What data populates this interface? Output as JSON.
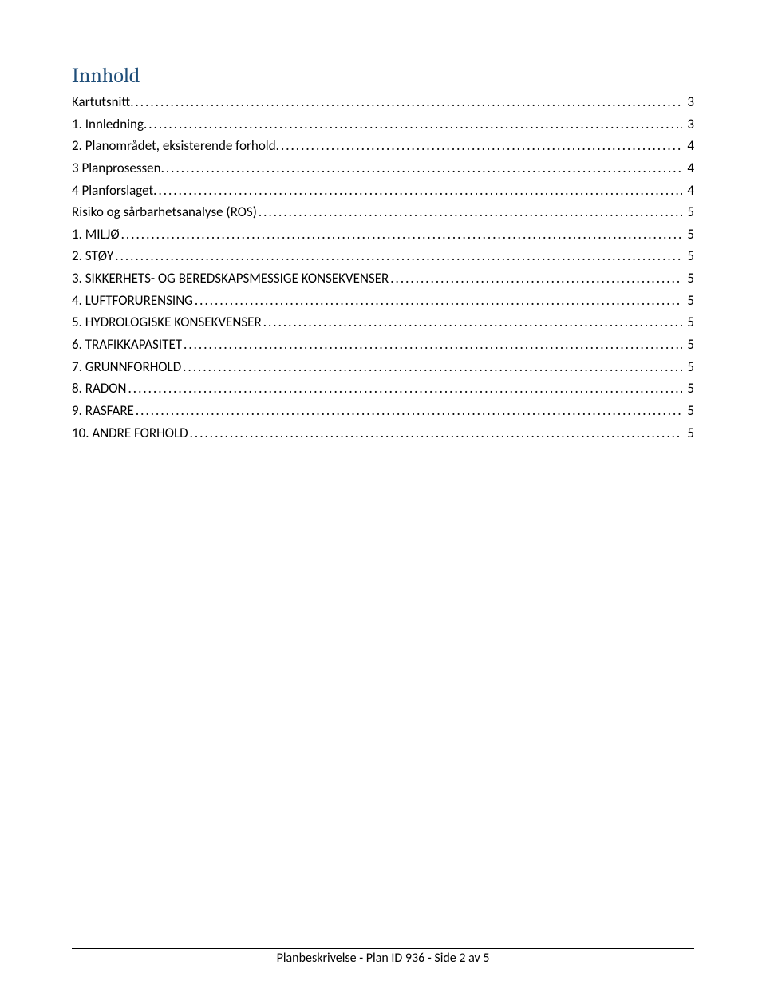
{
  "heading": "Innhold",
  "toc": [
    {
      "label": "Kartutsnitt.",
      "page": "3"
    },
    {
      "label": "1.   Innledning.",
      "page": "3"
    },
    {
      "label": "2.   Planområdet, eksisterende forhold.",
      "page": "4"
    },
    {
      "label": "3   Planprosessen.",
      "page": "4"
    },
    {
      "label": "4  Planforslaget.",
      "page": "4"
    },
    {
      "label": "Risiko og sårbarhetsanalyse (ROS)",
      "page": "5"
    },
    {
      "label": "1. MILJØ",
      "page": "5"
    },
    {
      "label": "2. STØY",
      "page": "5"
    },
    {
      "label": "3. SIKKERHETS- OG BEREDSKAPSMESSIGE KONSEKVENSER",
      "page": "5"
    },
    {
      "label": "4.  LUFTFORURENSING",
      "page": "5"
    },
    {
      "label": "5. HYDROLOGISKE KONSEKVENSER",
      "page": "5"
    },
    {
      "label": "6. TRAFIKKAPASITET",
      "page": "5"
    },
    {
      "label": "7. GRUNNFORHOLD",
      "page": "5"
    },
    {
      "label": "8. RADON",
      "page": "5"
    },
    {
      "label": "9. RASFARE",
      "page": "5"
    },
    {
      "label": "10. ANDRE FORHOLD",
      "page": "5"
    }
  ],
  "footer": "Planbeskrivelse - Plan ID 936 - Side 2 av 5",
  "colors": {
    "heading": "#1f4e79",
    "text": "#000000",
    "background": "#ffffff",
    "footer_border": "#000000"
  },
  "typography": {
    "heading_fontsize_pt": 18,
    "body_fontsize_pt": 11,
    "footer_fontsize_pt": 11,
    "heading_font": "Cambria",
    "body_font": "Calibri"
  }
}
